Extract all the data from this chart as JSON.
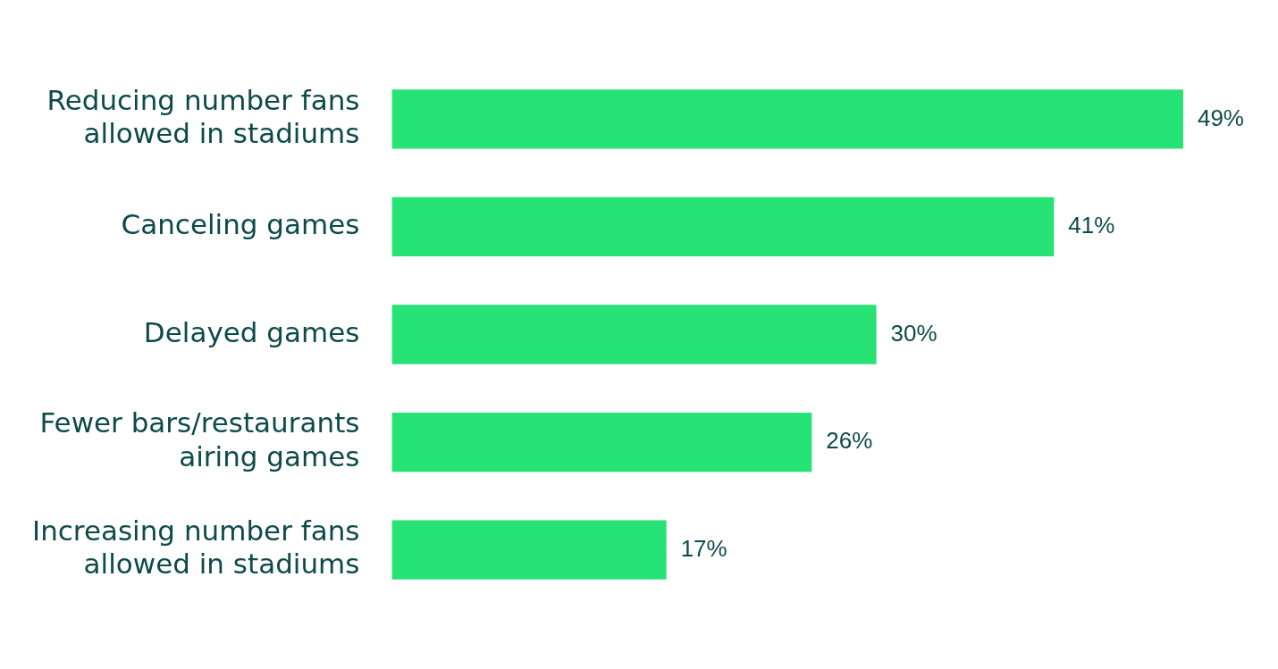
{
  "chart_data": {
    "type": "bar",
    "orientation": "horizontal",
    "categories": [
      "Reducing number fans allowed in stadiums",
      "Canceling games",
      "Delayed games",
      "Fewer bars/restaurants airing games",
      "Increasing number fans allowed in stadiums"
    ],
    "values": [
      49,
      41,
      30,
      26,
      17
    ],
    "value_labels": [
      "49%",
      "41%",
      "30%",
      "26%",
      "17%"
    ],
    "color": "#27e274",
    "legend": false
  }
}
